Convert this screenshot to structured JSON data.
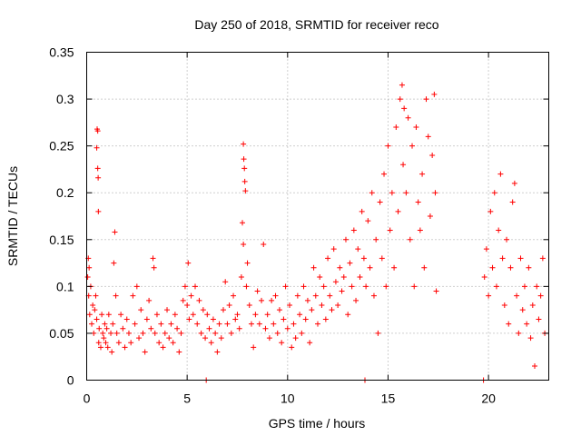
{
  "chart_data": {
    "type": "scatter",
    "title": "Day 250 of 2018, SRMTID for receiver reco",
    "xlabel": "GPS time / hours",
    "ylabel": "SRMTID / TECUs",
    "xlim": [
      0,
      23
    ],
    "ylim": [
      0,
      0.35
    ],
    "x_ticks": [
      0,
      5,
      10,
      15,
      20
    ],
    "x_tick_labels": [
      "0",
      "5",
      "10",
      "15",
      "20"
    ],
    "y_ticks": [
      0,
      0.05,
      0.1,
      0.15,
      0.2,
      0.25,
      0.3,
      0.35
    ],
    "y_tick_labels": [
      "0",
      "0.05",
      "0.1",
      "0.15",
      "0.2",
      "0.25",
      "0.3",
      "0.35"
    ],
    "grid": true,
    "marker": "+",
    "series": [
      {
        "name": "SRMTID",
        "color": "#ff0000",
        "points": [
          [
            0.05,
            0.11
          ],
          [
            0.08,
            0.13
          ],
          [
            0.1,
            0.09
          ],
          [
            0.12,
            0.12
          ],
          [
            0.15,
            0.07
          ],
          [
            0.2,
            0.1
          ],
          [
            0.25,
            0.06
          ],
          [
            0.3,
            0.08
          ],
          [
            0.35,
            0.05
          ],
          [
            0.4,
            0.075
          ],
          [
            0.45,
            0.09
          ],
          [
            0.5,
            0.065
          ],
          [
            0.5,
            0.248
          ],
          [
            0.52,
            0.268
          ],
          [
            0.55,
            0.266
          ],
          [
            0.55,
            0.226
          ],
          [
            0.57,
            0.216
          ],
          [
            0.58,
            0.18
          ],
          [
            0.6,
            0.04
          ],
          [
            0.62,
            0.055
          ],
          [
            0.7,
            0.035
          ],
          [
            0.75,
            0.07
          ],
          [
            0.8,
            0.05
          ],
          [
            0.85,
            0.045
          ],
          [
            0.9,
            0.06
          ],
          [
            0.95,
            0.04
          ],
          [
            1.0,
            0.055
          ],
          [
            1.05,
            0.035
          ],
          [
            1.1,
            0.07
          ],
          [
            1.2,
            0.05
          ],
          [
            1.25,
            0.03
          ],
          [
            1.3,
            0.06
          ],
          [
            1.35,
            0.125
          ],
          [
            1.4,
            0.158
          ],
          [
            1.45,
            0.09
          ],
          [
            1.5,
            0.05
          ],
          [
            1.6,
            0.04
          ],
          [
            1.7,
            0.07
          ],
          [
            1.8,
            0.055
          ],
          [
            1.9,
            0.035
          ],
          [
            2.0,
            0.065
          ],
          [
            2.1,
            0.05
          ],
          [
            2.2,
            0.04
          ],
          [
            2.3,
            0.09
          ],
          [
            2.4,
            0.06
          ],
          [
            2.5,
            0.1
          ],
          [
            2.6,
            0.045
          ],
          [
            2.7,
            0.075
          ],
          [
            2.8,
            0.05
          ],
          [
            2.9,
            0.03
          ],
          [
            3.0,
            0.065
          ],
          [
            3.1,
            0.085
          ],
          [
            3.2,
            0.055
          ],
          [
            3.3,
            0.13
          ],
          [
            3.35,
            0.12
          ],
          [
            3.4,
            0.05
          ],
          [
            3.5,
            0.07
          ],
          [
            3.6,
            0.04
          ],
          [
            3.7,
            0.06
          ],
          [
            3.8,
            0.035
          ],
          [
            3.9,
            0.05
          ],
          [
            4.0,
            0.075
          ],
          [
            4.1,
            0.045
          ],
          [
            4.2,
            0.06
          ],
          [
            4.3,
            0.04
          ],
          [
            4.4,
            0.07
          ],
          [
            4.5,
            0.055
          ],
          [
            4.6,
            0.03
          ],
          [
            4.7,
            0.05
          ],
          [
            4.8,
            0.085
          ],
          [
            4.9,
            0.1
          ],
          [
            5.0,
            0.08
          ],
          [
            5.05,
            0.125
          ],
          [
            5.1,
            0.065
          ],
          [
            5.2,
            0.09
          ],
          [
            5.3,
            0.07
          ],
          [
            5.4,
            0.1
          ],
          [
            5.5,
            0.06
          ],
          [
            5.6,
            0.085
          ],
          [
            5.7,
            0.05
          ],
          [
            5.8,
            0.075
          ],
          [
            5.9,
            0.045
          ],
          [
            5.95,
            0.0
          ],
          [
            6.0,
            0.07
          ],
          [
            6.1,
            0.055
          ],
          [
            6.2,
            0.04
          ],
          [
            6.3,
            0.065
          ],
          [
            6.4,
            0.05
          ],
          [
            6.5,
            0.03
          ],
          [
            6.6,
            0.06
          ],
          [
            6.7,
            0.045
          ],
          [
            6.8,
            0.075
          ],
          [
            6.9,
            0.105
          ],
          [
            7.0,
            0.06
          ],
          [
            7.1,
            0.08
          ],
          [
            7.2,
            0.05
          ],
          [
            7.3,
            0.09
          ],
          [
            7.4,
            0.065
          ],
          [
            7.5,
            0.07
          ],
          [
            7.6,
            0.055
          ],
          [
            7.7,
            0.11
          ],
          [
            7.75,
            0.168
          ],
          [
            7.8,
            0.145
          ],
          [
            7.8,
            0.252
          ],
          [
            7.82,
            0.236
          ],
          [
            7.85,
            0.226
          ],
          [
            7.87,
            0.212
          ],
          [
            7.9,
            0.202
          ],
          [
            7.95,
            0.1
          ],
          [
            8.0,
            0.125
          ],
          [
            8.1,
            0.08
          ],
          [
            8.2,
            0.06
          ],
          [
            8.3,
            0.035
          ],
          [
            8.4,
            0.07
          ],
          [
            8.5,
            0.095
          ],
          [
            8.6,
            0.06
          ],
          [
            8.7,
            0.085
          ],
          [
            8.8,
            0.145
          ],
          [
            8.9,
            0.055
          ],
          [
            9.0,
            0.07
          ],
          [
            9.1,
            0.045
          ],
          [
            9.2,
            0.085
          ],
          [
            9.3,
            0.06
          ],
          [
            9.4,
            0.09
          ],
          [
            9.5,
            0.05
          ],
          [
            9.6,
            0.075
          ],
          [
            9.7,
            0.04
          ],
          [
            9.8,
            0.065
          ],
          [
            9.9,
            0.1
          ],
          [
            10.0,
            0.055
          ],
          [
            10.1,
            0.08
          ],
          [
            10.2,
            0.035
          ],
          [
            10.3,
            0.06
          ],
          [
            10.4,
            0.045
          ],
          [
            10.5,
            0.09
          ],
          [
            10.6,
            0.07
          ],
          [
            10.7,
            0.05
          ],
          [
            10.8,
            0.1
          ],
          [
            10.9,
            0.065
          ],
          [
            11.0,
            0.085
          ],
          [
            11.1,
            0.04
          ],
          [
            11.2,
            0.075
          ],
          [
            11.3,
            0.12
          ],
          [
            11.4,
            0.09
          ],
          [
            11.5,
            0.06
          ],
          [
            11.6,
            0.11
          ],
          [
            11.7,
            0.08
          ],
          [
            11.8,
            0.1
          ],
          [
            11.9,
            0.065
          ],
          [
            12.0,
            0.13
          ],
          [
            12.1,
            0.09
          ],
          [
            12.2,
            0.075
          ],
          [
            12.3,
            0.14
          ],
          [
            12.4,
            0.105
          ],
          [
            12.5,
            0.08
          ],
          [
            12.6,
            0.12
          ],
          [
            12.7,
            0.095
          ],
          [
            12.8,
            0.11
          ],
          [
            12.9,
            0.15
          ],
          [
            13.0,
            0.07
          ],
          [
            13.1,
            0.125
          ],
          [
            13.2,
            0.1
          ],
          [
            13.3,
            0.16
          ],
          [
            13.4,
            0.085
          ],
          [
            13.5,
            0.14
          ],
          [
            13.6,
            0.11
          ],
          [
            13.7,
            0.18
          ],
          [
            13.8,
            0.13
          ],
          [
            13.85,
            0.0
          ],
          [
            13.9,
            0.1
          ],
          [
            14.0,
            0.17
          ],
          [
            14.1,
            0.12
          ],
          [
            14.2,
            0.2
          ],
          [
            14.3,
            0.09
          ],
          [
            14.4,
            0.15
          ],
          [
            14.5,
            0.05
          ],
          [
            14.6,
            0.19
          ],
          [
            14.7,
            0.13
          ],
          [
            14.8,
            0.22
          ],
          [
            14.9,
            0.1
          ],
          [
            15.0,
            0.25
          ],
          [
            15.1,
            0.16
          ],
          [
            15.2,
            0.2
          ],
          [
            15.3,
            0.12
          ],
          [
            15.4,
            0.27
          ],
          [
            15.5,
            0.18
          ],
          [
            15.6,
            0.3
          ],
          [
            15.7,
            0.315
          ],
          [
            15.75,
            0.23
          ],
          [
            15.8,
            0.29
          ],
          [
            15.9,
            0.2
          ],
          [
            16.0,
            0.28
          ],
          [
            16.1,
            0.15
          ],
          [
            16.2,
            0.25
          ],
          [
            16.3,
            0.1
          ],
          [
            16.4,
            0.27
          ],
          [
            16.5,
            0.19
          ],
          [
            16.6,
            0.16
          ],
          [
            16.7,
            0.22
          ],
          [
            16.8,
            0.12
          ],
          [
            16.9,
            0.3
          ],
          [
            17.0,
            0.26
          ],
          [
            17.1,
            0.175
          ],
          [
            17.2,
            0.24
          ],
          [
            17.3,
            0.305
          ],
          [
            17.35,
            0.2
          ],
          [
            17.4,
            0.095
          ],
          [
            19.75,
            0.0
          ],
          [
            19.8,
            0.11
          ],
          [
            19.9,
            0.14
          ],
          [
            20.0,
            0.09
          ],
          [
            20.1,
            0.18
          ],
          [
            20.2,
            0.12
          ],
          [
            20.3,
            0.2
          ],
          [
            20.4,
            0.1
          ],
          [
            20.5,
            0.16
          ],
          [
            20.6,
            0.22
          ],
          [
            20.7,
            0.13
          ],
          [
            20.8,
            0.08
          ],
          [
            20.9,
            0.15
          ],
          [
            21.0,
            0.06
          ],
          [
            21.1,
            0.12
          ],
          [
            21.2,
            0.19
          ],
          [
            21.3,
            0.21
          ],
          [
            21.4,
            0.09
          ],
          [
            21.5,
            0.05
          ],
          [
            21.6,
            0.13
          ],
          [
            21.7,
            0.075
          ],
          [
            21.8,
            0.1
          ],
          [
            21.9,
            0.06
          ],
          [
            22.0,
            0.12
          ],
          [
            22.1,
            0.045
          ],
          [
            22.2,
            0.08
          ],
          [
            22.3,
            0.015
          ],
          [
            22.4,
            0.1
          ],
          [
            22.5,
            0.065
          ],
          [
            22.6,
            0.09
          ],
          [
            22.7,
            0.13
          ],
          [
            22.8,
            0.05
          ]
        ]
      }
    ]
  }
}
